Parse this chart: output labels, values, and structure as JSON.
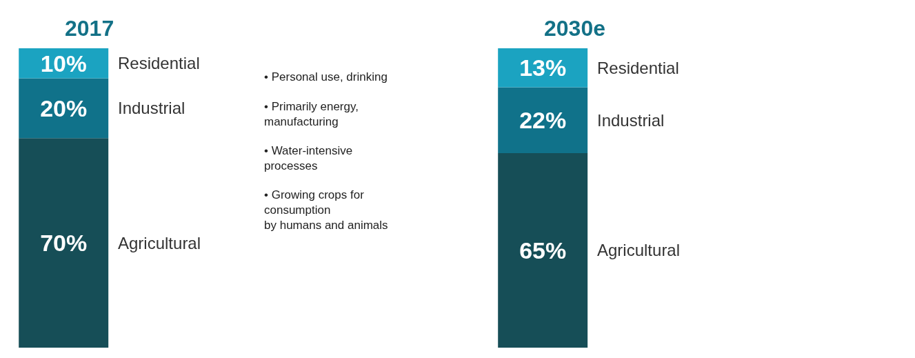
{
  "chart_data": [
    {
      "type": "bar",
      "stacked": true,
      "title": "2017",
      "categories": [
        null
      ],
      "tick_labels": false,
      "legend": false,
      "series": [
        {
          "name": "Agricultural",
          "color": "#164e57",
          "values": [
            70
          ],
          "value_labels": [
            "70%"
          ]
        },
        {
          "name": "Industrial",
          "color": "#10728a",
          "values": [
            20
          ],
          "value_labels": [
            "20%"
          ]
        },
        {
          "name": "Residential",
          "color": "#1ba3c1",
          "values": [
            10
          ],
          "value_labels": [
            "10%"
          ]
        }
      ],
      "annotations": [
        "• Personal use, drinking",
        "• Primarily energy,\nmanufacturing",
        "• Water-intensive\nprocesses",
        "• Growing crops for\nconsumption\nby humans and animals"
      ]
    },
    {
      "type": "bar",
      "stacked": true,
      "title": "2030e",
      "categories": [
        null
      ],
      "tick_labels": false,
      "legend": false,
      "series": [
        {
          "name": "Agricultural",
          "color": "#164e57",
          "values": [
            65
          ],
          "value_labels": [
            "65%"
          ]
        },
        {
          "name": "Industrial",
          "color": "#10728a",
          "values": [
            22
          ],
          "value_labels": [
            "22%"
          ]
        },
        {
          "name": "Residential",
          "color": "#1ba3c1",
          "values": [
            13
          ],
          "value_labels": [
            "13%"
          ]
        }
      ]
    }
  ]
}
